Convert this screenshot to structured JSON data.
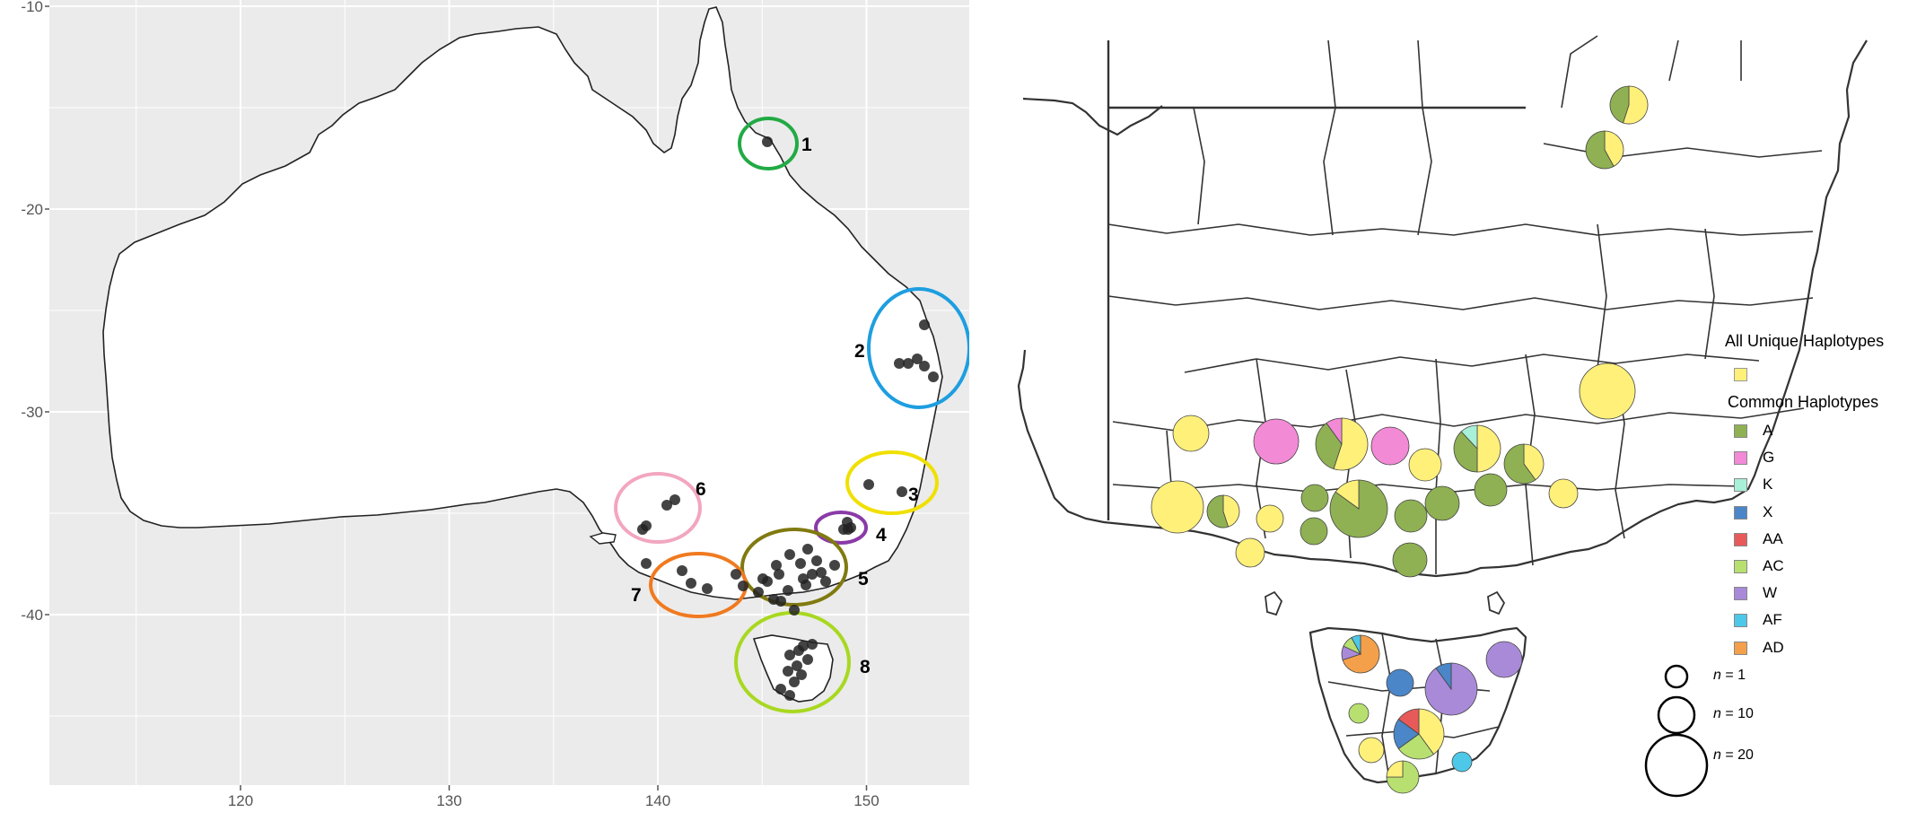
{
  "left_map": {
    "y_axis_ticks": [
      "-10",
      "-20",
      "-30",
      "-40"
    ],
    "x_axis_ticks": [
      "120",
      "130",
      "140",
      "150"
    ],
    "cluster_labels": [
      "1",
      "2",
      "3",
      "4",
      "5",
      "6",
      "7",
      "8"
    ],
    "cluster_colors": [
      "#22aa44",
      "#1e9ee0",
      "#f0e000",
      "#8a3aa8",
      "#807a10",
      "#f2a6c0",
      "#f07a20",
      "#a8d820"
    ],
    "point_color": "#222222"
  },
  "right_map": {
    "legend": {
      "unique_title": "All Unique Haplotypes",
      "common_title": "Common Haplotypes",
      "unique_color": "#fff07a",
      "items": [
        {
          "label": "A",
          "color": "#8fb153"
        },
        {
          "label": "G",
          "color": "#f28ad6"
        },
        {
          "label": "K",
          "color": "#a8f0d8"
        },
        {
          "label": "X",
          "color": "#4a86c8"
        },
        {
          "label": "AA",
          "color": "#e85a5a"
        },
        {
          "label": "AC",
          "color": "#b8e070"
        },
        {
          "label": "W",
          "color": "#a98ad8"
        },
        {
          "label": "AF",
          "color": "#4ec8e8"
        },
        {
          "label": "AD",
          "color": "#f4a04a"
        }
      ]
    },
    "size_legend": [
      {
        "n_label": "n",
        "value_label": " = 1"
      },
      {
        "n_label": "n",
        "value_label": " = 10"
      },
      {
        "n_label": "n",
        "value_label": " = 20"
      }
    ]
  }
}
